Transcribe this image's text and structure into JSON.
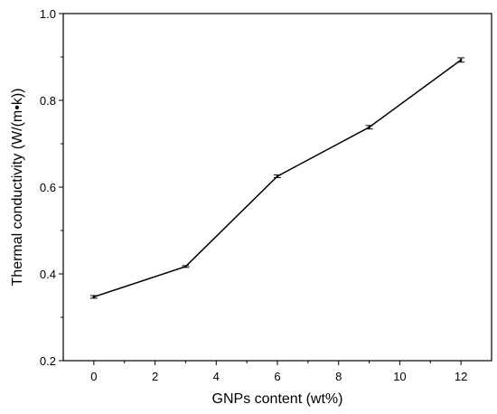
{
  "chart_data": {
    "type": "line",
    "title": "",
    "xlabel": "GNPs content (wt%)",
    "ylabel": "Thermal conductivity (W/(m•k))",
    "xlim": [
      -1,
      13
    ],
    "ylim": [
      0.2,
      1.0
    ],
    "xticks": [
      0,
      2,
      4,
      6,
      8,
      10,
      12
    ],
    "yticks": [
      0.2,
      0.4,
      0.6,
      0.8,
      1.0
    ],
    "xtick_labels": [
      "0",
      "2",
      "4",
      "6",
      "8",
      "10",
      "12"
    ],
    "ytick_labels": [
      "0.2",
      "0.4",
      "0.6",
      "0.8",
      "1.0"
    ],
    "grid": false,
    "series": [
      {
        "x": [
          0,
          3,
          6,
          9,
          12
        ],
        "y": [
          0.347,
          0.417,
          0.625,
          0.738,
          0.893
        ],
        "error": [
          0.003,
          0.002,
          0.003,
          0.004,
          0.005
        ],
        "color": "#000000"
      }
    ]
  }
}
